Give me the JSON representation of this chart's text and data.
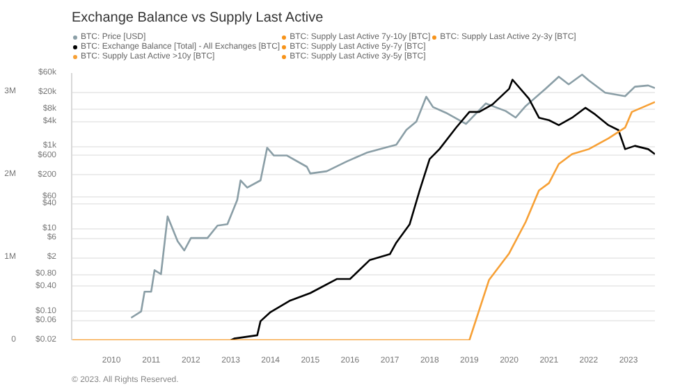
{
  "chart_data": {
    "type": "line",
    "title": "Exchange Balance vs Supply Last Active",
    "annotations": [
      "© 2023. All Rights Reserved."
    ],
    "xlim": [
      "2009-01",
      "2023-09"
    ],
    "xticks": [
      "2010",
      "2011",
      "2012",
      "2013",
      "2014",
      "2015",
      "2016",
      "2017",
      "2018",
      "2019",
      "2020",
      "2021",
      "2022",
      "2023"
    ],
    "ylim": [
      0,
      3230000
    ],
    "yticks": [
      0,
      {
        "value": 1000000,
        "label": "1M"
      },
      {
        "value": 2000000,
        "label": "2M"
      },
      {
        "value": 3000000,
        "label": "3M"
      }
    ],
    "y2lim": [
      0.02,
      60000
    ],
    "log": "y2",
    "y2ticks": [
      {
        "value": 0.02,
        "label": "$0.02"
      },
      {
        "value": 0.06,
        "label": "$0.06"
      },
      {
        "value": 0.1,
        "label": "$0.10"
      },
      {
        "value": 0.4,
        "label": "$0.40"
      },
      {
        "value": 0.8,
        "label": "$0.80"
      },
      {
        "value": 2,
        "label": "$2"
      },
      {
        "value": 6,
        "label": "$6"
      },
      {
        "value": 10,
        "label": "$10"
      },
      {
        "value": 40,
        "label": "$40"
      },
      {
        "value": 60,
        "label": "$60"
      },
      {
        "value": 200,
        "label": "$200"
      },
      {
        "value": 600,
        "label": "$600"
      },
      {
        "value": 1000,
        "label": "$1k"
      },
      {
        "value": 4000,
        "label": "$4k"
      },
      {
        "value": 8000,
        "label": "$8k"
      },
      {
        "value": 20000,
        "label": "$20k"
      },
      {
        "value": 60000,
        "label": "$60k"
      }
    ],
    "grid": "y",
    "legend": "top",
    "series": [
      {
        "name": "BTC: Price [USD]",
        "color": "#8a9ea6",
        "axis": "y2",
        "x": [
          "2010-07",
          "2010-10",
          "2010-11",
          "2011-01",
          "2011-02",
          "2011-04",
          "2011-06",
          "2011-09",
          "2011-11",
          "2012-01",
          "2012-06",
          "2012-09",
          "2012-12",
          "2013-03",
          "2013-04",
          "2013-06",
          "2013-10",
          "2013-12",
          "2014-02",
          "2014-06",
          "2014-12",
          "2015-01",
          "2015-06",
          "2015-12",
          "2016-06",
          "2016-12",
          "2017-03",
          "2017-06",
          "2017-09",
          "2017-12",
          "2018-02",
          "2018-06",
          "2018-12",
          "2019-06",
          "2019-12",
          "2020-03",
          "2020-06",
          "2020-12",
          "2021-04",
          "2021-07",
          "2021-11",
          "2022-01",
          "2022-06",
          "2022-12",
          "2023-03",
          "2023-07",
          "2023-09"
        ],
        "values": [
          0.07,
          0.1,
          0.3,
          0.3,
          1,
          0.8,
          20,
          5,
          3,
          6,
          6,
          12,
          13,
          50,
          150,
          100,
          150,
          925,
          600,
          600,
          320,
          220,
          250,
          430,
          700,
          950,
          1100,
          2500,
          4000,
          16000,
          9000,
          6500,
          3500,
          11000,
          7200,
          5000,
          9500,
          25000,
          49000,
          32000,
          55000,
          40000,
          20000,
          16500,
          28000,
          30000,
          26000
        ]
      },
      {
        "name": "BTC: Exchange Balance [Total] - All Exchanges [BTC]",
        "color": "#000000",
        "x": [
          "2013-01",
          "2013-02",
          "2013-09",
          "2013-10",
          "2014-01",
          "2014-07",
          "2015-01",
          "2015-09",
          "2016-01",
          "2016-07",
          "2017-01",
          "2017-03",
          "2017-07",
          "2017-10",
          "2018-01",
          "2018-04",
          "2018-09",
          "2019-01",
          "2019-04",
          "2019-08",
          "2020-01",
          "2020-02",
          "2020-07",
          "2020-10",
          "2021-01",
          "2021-04",
          "2021-08",
          "2021-12",
          "2022-03",
          "2022-07",
          "2022-10",
          "2022-12",
          "2023-03",
          "2023-07",
          "2023-09"
        ],
        "values": [
          0,
          20000,
          60000,
          230000,
          340000,
          480000,
          570000,
          740000,
          740000,
          970000,
          1040000,
          1180000,
          1400000,
          1810000,
          2190000,
          2310000,
          2570000,
          2760000,
          2760000,
          2850000,
          3040000,
          3150000,
          2920000,
          2690000,
          2660000,
          2600000,
          2690000,
          2810000,
          2730000,
          2600000,
          2540000,
          2310000,
          2350000,
          2310000,
          2250000
        ]
      },
      {
        "name": "BTC: Supply Last Active >10y [BTC]",
        "color": "#f7a035",
        "x": [
          "2009-01",
          "2019-01",
          "2019-07",
          "2020-01",
          "2020-06",
          "2020-10",
          "2021-01",
          "2021-04",
          "2021-08",
          "2022-01",
          "2022-07",
          "2022-12",
          "2023-02",
          "2023-09"
        ],
        "values": [
          0,
          0,
          730000,
          1050000,
          1430000,
          1810000,
          1900000,
          2130000,
          2250000,
          2310000,
          2440000,
          2570000,
          2760000,
          2880000
        ]
      },
      {
        "name": "BTC: Supply Last Active 7y-10y [BTC]",
        "color": "#f7931a"
      },
      {
        "name": "BTC: Supply Last Active 5y-7y [BTC]",
        "color": "#f7931a"
      },
      {
        "name": "BTC: Supply Last Active 3y-5y [BTC]",
        "color": "#f7931a"
      },
      {
        "name": "BTC: Supply Last Active 2y-3y [BTC]",
        "color": "#f7931a"
      }
    ]
  }
}
